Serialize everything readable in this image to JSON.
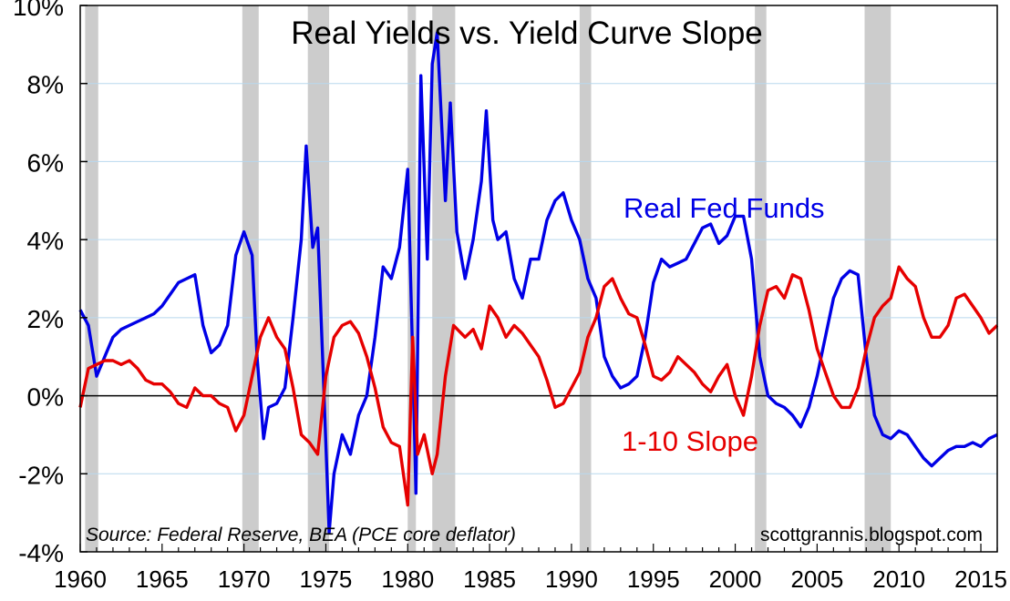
{
  "chart_data": {
    "type": "line",
    "title": "Real Yields vs. Yield Curve Slope",
    "source_note": "Source: Federal Reserve, BEA (PCE core deflator)",
    "credit": "scottgrannis.blogspot.com",
    "xlabel": "",
    "ylabel": "",
    "xlim": [
      1960,
      2016
    ],
    "ylim": [
      -4,
      10
    ],
    "x_ticks": [
      1960,
      1965,
      1970,
      1975,
      1980,
      1985,
      1990,
      1995,
      2000,
      2005,
      2010,
      2015
    ],
    "x_tick_labels": [
      "1960",
      "1965",
      "1970",
      "1975",
      "1980",
      "1985",
      "1990",
      "1995",
      "2000",
      "2005",
      "2010",
      "2015"
    ],
    "y_ticks": [
      -4,
      -2,
      0,
      2,
      4,
      6,
      8,
      10
    ],
    "y_tick_labels": [
      "-4%",
      "-2%",
      "0%",
      "2%",
      "4%",
      "6%",
      "8%",
      "10%"
    ],
    "grid": true,
    "zero_line": 0,
    "recessions": [
      [
        1960.3,
        1961.1
      ],
      [
        1969.9,
        1970.9
      ],
      [
        1973.9,
        1975.2
      ],
      [
        1980.0,
        1980.5
      ],
      [
        1981.5,
        1982.9
      ],
      [
        1990.5,
        1991.2
      ],
      [
        2001.2,
        2001.9
      ],
      [
        2007.9,
        2009.5
      ]
    ],
    "series": [
      {
        "name": "Real Fed Funds",
        "color": "#0000e6",
        "points": [
          [
            1960.0,
            2.2
          ],
          [
            1960.5,
            1.8
          ],
          [
            1961.0,
            0.5
          ],
          [
            1961.5,
            1.0
          ],
          [
            1962.0,
            1.5
          ],
          [
            1962.5,
            1.7
          ],
          [
            1963.0,
            1.8
          ],
          [
            1963.5,
            1.9
          ],
          [
            1964.0,
            2.0
          ],
          [
            1964.5,
            2.1
          ],
          [
            1965.0,
            2.3
          ],
          [
            1965.5,
            2.6
          ],
          [
            1966.0,
            2.9
          ],
          [
            1966.5,
            3.0
          ],
          [
            1967.0,
            3.1
          ],
          [
            1967.5,
            1.8
          ],
          [
            1968.0,
            1.1
          ],
          [
            1968.5,
            1.3
          ],
          [
            1969.0,
            1.8
          ],
          [
            1969.5,
            3.6
          ],
          [
            1970.0,
            4.2
          ],
          [
            1970.5,
            3.6
          ],
          [
            1970.8,
            1.0
          ],
          [
            1971.2,
            -1.1
          ],
          [
            1971.5,
            -0.3
          ],
          [
            1972.0,
            -0.2
          ],
          [
            1972.5,
            0.2
          ],
          [
            1973.0,
            2.0
          ],
          [
            1973.5,
            4.0
          ],
          [
            1973.8,
            6.4
          ],
          [
            1974.2,
            3.8
          ],
          [
            1974.5,
            4.3
          ],
          [
            1974.8,
            1.0
          ],
          [
            1975.2,
            -3.5
          ],
          [
            1975.5,
            -2.0
          ],
          [
            1976.0,
            -1.0
          ],
          [
            1976.5,
            -1.5
          ],
          [
            1977.0,
            -0.5
          ],
          [
            1977.5,
            0.0
          ],
          [
            1978.0,
            1.5
          ],
          [
            1978.5,
            3.3
          ],
          [
            1979.0,
            3.0
          ],
          [
            1979.5,
            3.8
          ],
          [
            1980.0,
            5.8
          ],
          [
            1980.3,
            1.0
          ],
          [
            1980.5,
            -2.5
          ],
          [
            1980.8,
            8.2
          ],
          [
            1981.2,
            3.5
          ],
          [
            1981.5,
            8.5
          ],
          [
            1981.8,
            9.3
          ],
          [
            1982.3,
            5.0
          ],
          [
            1982.6,
            7.5
          ],
          [
            1983.0,
            4.2
          ],
          [
            1983.5,
            3.0
          ],
          [
            1984.0,
            4.0
          ],
          [
            1984.5,
            5.5
          ],
          [
            1984.8,
            7.3
          ],
          [
            1985.2,
            4.5
          ],
          [
            1985.5,
            4.0
          ],
          [
            1986.0,
            4.2
          ],
          [
            1986.5,
            3.0
          ],
          [
            1987.0,
            2.5
          ],
          [
            1987.5,
            3.5
          ],
          [
            1988.0,
            3.5
          ],
          [
            1988.5,
            4.5
          ],
          [
            1989.0,
            5.0
          ],
          [
            1989.5,
            5.2
          ],
          [
            1990.0,
            4.5
          ],
          [
            1990.5,
            4.0
          ],
          [
            1991.0,
            3.0
          ],
          [
            1991.5,
            2.5
          ],
          [
            1992.0,
            1.0
          ],
          [
            1992.5,
            0.5
          ],
          [
            1993.0,
            0.2
          ],
          [
            1993.5,
            0.3
          ],
          [
            1994.0,
            0.5
          ],
          [
            1994.5,
            1.5
          ],
          [
            1995.0,
            2.9
          ],
          [
            1995.5,
            3.5
          ],
          [
            1996.0,
            3.3
          ],
          [
            1996.5,
            3.4
          ],
          [
            1997.0,
            3.5
          ],
          [
            1997.5,
            3.9
          ],
          [
            1998.0,
            4.3
          ],
          [
            1998.5,
            4.4
          ],
          [
            1999.0,
            3.9
          ],
          [
            1999.5,
            4.1
          ],
          [
            2000.0,
            4.6
          ],
          [
            2000.5,
            4.6
          ],
          [
            2001.0,
            3.5
          ],
          [
            2001.5,
            1.0
          ],
          [
            2002.0,
            0.0
          ],
          [
            2002.5,
            -0.2
          ],
          [
            2003.0,
            -0.3
          ],
          [
            2003.5,
            -0.5
          ],
          [
            2004.0,
            -0.8
          ],
          [
            2004.5,
            -0.3
          ],
          [
            2005.0,
            0.5
          ],
          [
            2005.5,
            1.5
          ],
          [
            2006.0,
            2.5
          ],
          [
            2006.5,
            3.0
          ],
          [
            2007.0,
            3.2
          ],
          [
            2007.5,
            3.1
          ],
          [
            2008.0,
            1.0
          ],
          [
            2008.5,
            -0.5
          ],
          [
            2009.0,
            -1.0
          ],
          [
            2009.5,
            -1.1
          ],
          [
            2010.0,
            -0.9
          ],
          [
            2010.5,
            -1.0
          ],
          [
            2011.0,
            -1.3
          ],
          [
            2011.5,
            -1.6
          ],
          [
            2012.0,
            -1.8
          ],
          [
            2012.5,
            -1.6
          ],
          [
            2013.0,
            -1.4
          ],
          [
            2013.5,
            -1.3
          ],
          [
            2014.0,
            -1.3
          ],
          [
            2014.5,
            -1.2
          ],
          [
            2015.0,
            -1.3
          ],
          [
            2015.5,
            -1.1
          ],
          [
            2016.0,
            -1.0
          ]
        ]
      },
      {
        "name": "1-10 Slope",
        "color": "#e60000",
        "points": [
          [
            1960.0,
            -0.3
          ],
          [
            1960.5,
            0.7
          ],
          [
            1961.0,
            0.8
          ],
          [
            1961.5,
            0.9
          ],
          [
            1962.0,
            0.9
          ],
          [
            1962.5,
            0.8
          ],
          [
            1963.0,
            0.9
          ],
          [
            1963.5,
            0.7
          ],
          [
            1964.0,
            0.4
          ],
          [
            1964.5,
            0.3
          ],
          [
            1965.0,
            0.3
          ],
          [
            1965.5,
            0.1
          ],
          [
            1966.0,
            -0.2
          ],
          [
            1966.5,
            -0.3
          ],
          [
            1967.0,
            0.2
          ],
          [
            1967.5,
            0.0
          ],
          [
            1968.0,
            0.0
          ],
          [
            1968.5,
            -0.2
          ],
          [
            1969.0,
            -0.3
          ],
          [
            1969.5,
            -0.9
          ],
          [
            1970.0,
            -0.5
          ],
          [
            1970.5,
            0.5
          ],
          [
            1971.0,
            1.5
          ],
          [
            1971.5,
            2.0
          ],
          [
            1972.0,
            1.5
          ],
          [
            1972.5,
            1.2
          ],
          [
            1973.0,
            0.2
          ],
          [
            1973.5,
            -1.0
          ],
          [
            1974.0,
            -1.2
          ],
          [
            1974.5,
            -1.5
          ],
          [
            1975.0,
            0.5
          ],
          [
            1975.5,
            1.5
          ],
          [
            1976.0,
            1.8
          ],
          [
            1976.5,
            1.9
          ],
          [
            1977.0,
            1.6
          ],
          [
            1977.5,
            1.0
          ],
          [
            1978.0,
            0.2
          ],
          [
            1978.5,
            -0.8
          ],
          [
            1979.0,
            -1.2
          ],
          [
            1979.5,
            -1.3
          ],
          [
            1980.0,
            -2.8
          ],
          [
            1980.3,
            1.5
          ],
          [
            1980.6,
            -1.5
          ],
          [
            1981.0,
            -1.0
          ],
          [
            1981.5,
            -2.0
          ],
          [
            1981.8,
            -1.5
          ],
          [
            1982.3,
            0.5
          ],
          [
            1982.8,
            1.8
          ],
          [
            1983.5,
            1.5
          ],
          [
            1984.0,
            1.7
          ],
          [
            1984.5,
            1.2
          ],
          [
            1985.0,
            2.3
          ],
          [
            1985.5,
            2.0
          ],
          [
            1986.0,
            1.5
          ],
          [
            1986.5,
            1.8
          ],
          [
            1987.0,
            1.6
          ],
          [
            1987.5,
            1.3
          ],
          [
            1988.0,
            1.0
          ],
          [
            1988.5,
            0.4
          ],
          [
            1989.0,
            -0.3
          ],
          [
            1989.5,
            -0.2
          ],
          [
            1990.0,
            0.2
          ],
          [
            1990.5,
            0.6
          ],
          [
            1991.0,
            1.5
          ],
          [
            1991.5,
            2.0
          ],
          [
            1992.0,
            2.8
          ],
          [
            1992.5,
            3.0
          ],
          [
            1993.0,
            2.5
          ],
          [
            1993.5,
            2.1
          ],
          [
            1994.0,
            2.0
          ],
          [
            1994.5,
            1.3
          ],
          [
            1995.0,
            0.5
          ],
          [
            1995.5,
            0.4
          ],
          [
            1996.0,
            0.6
          ],
          [
            1996.5,
            1.0
          ],
          [
            1997.0,
            0.8
          ],
          [
            1997.5,
            0.6
          ],
          [
            1998.0,
            0.3
          ],
          [
            1998.5,
            0.1
          ],
          [
            1999.0,
            0.5
          ],
          [
            1999.5,
            0.8
          ],
          [
            2000.0,
            0.0
          ],
          [
            2000.5,
            -0.5
          ],
          [
            2001.0,
            0.5
          ],
          [
            2001.5,
            1.8
          ],
          [
            2002.0,
            2.7
          ],
          [
            2002.5,
            2.8
          ],
          [
            2003.0,
            2.5
          ],
          [
            2003.5,
            3.1
          ],
          [
            2004.0,
            3.0
          ],
          [
            2004.5,
            2.2
          ],
          [
            2005.0,
            1.2
          ],
          [
            2005.5,
            0.6
          ],
          [
            2006.0,
            0.0
          ],
          [
            2006.5,
            -0.3
          ],
          [
            2007.0,
            -0.3
          ],
          [
            2007.5,
            0.2
          ],
          [
            2008.0,
            1.2
          ],
          [
            2008.5,
            2.0
          ],
          [
            2009.0,
            2.3
          ],
          [
            2009.5,
            2.5
          ],
          [
            2010.0,
            3.3
          ],
          [
            2010.5,
            3.0
          ],
          [
            2011.0,
            2.8
          ],
          [
            2011.5,
            2.0
          ],
          [
            2012.0,
            1.5
          ],
          [
            2012.5,
            1.5
          ],
          [
            2013.0,
            1.8
          ],
          [
            2013.5,
            2.5
          ],
          [
            2014.0,
            2.6
          ],
          [
            2014.5,
            2.3
          ],
          [
            2015.0,
            2.0
          ],
          [
            2015.5,
            1.6
          ],
          [
            2016.0,
            1.8
          ]
        ]
      }
    ]
  }
}
